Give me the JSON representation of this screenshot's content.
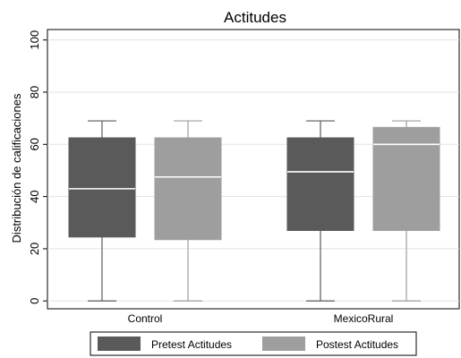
{
  "chart_data": {
    "type": "box",
    "title": "Actitudes",
    "ylabel": "Distribución de calificaciones",
    "xlabel": "",
    "ylim": [
      -3,
      104
    ],
    "yticks": [
      0,
      20,
      40,
      60,
      80,
      100
    ],
    "grid": true,
    "legend_position": "bottom",
    "categories": [
      "Control",
      "MexicoRural"
    ],
    "series": [
      {
        "name": "Pretest Actitudes",
        "color": "#5a5a5a",
        "boxes": [
          {
            "min": 0,
            "q1": 24.5,
            "median": 43,
            "q3": 62.5,
            "max": 69
          },
          {
            "min": 0,
            "q1": 27,
            "median": 49.5,
            "q3": 62.5,
            "max": 69
          }
        ]
      },
      {
        "name": "Postest Actitudes",
        "color": "#9e9e9e",
        "boxes": [
          {
            "min": 0,
            "q1": 23.5,
            "median": 47.5,
            "q3": 62.5,
            "max": 69
          },
          {
            "min": 0,
            "q1": 27,
            "median": 60,
            "q3": 66.5,
            "max": 69
          }
        ]
      }
    ]
  }
}
